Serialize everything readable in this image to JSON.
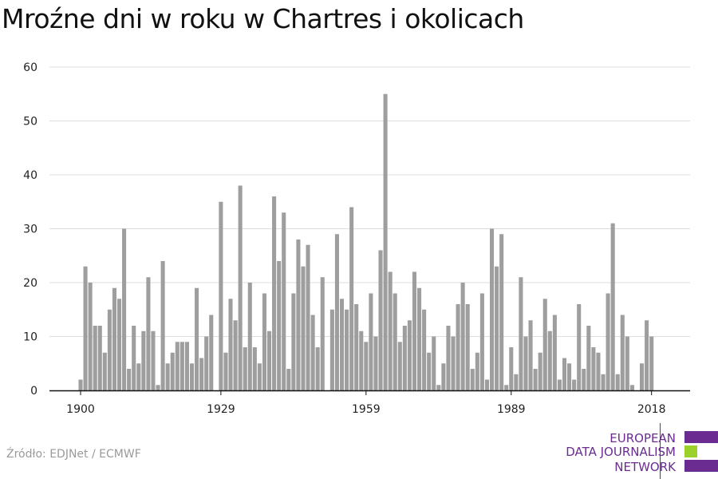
{
  "chart_data": {
    "type": "bar",
    "title": "Mroźne dni w roku w Chartres i okolicach",
    "xlabel": "",
    "ylabel": "",
    "ylim": [
      0,
      60
    ],
    "yticks": [
      0,
      10,
      20,
      30,
      40,
      50,
      60
    ],
    "xticks": [
      1900,
      1929,
      1959,
      1989,
      2018
    ],
    "grid": true,
    "bar_color": "#9e9e9e",
    "x": [
      1900,
      1901,
      1902,
      1903,
      1904,
      1905,
      1906,
      1907,
      1908,
      1909,
      1910,
      1911,
      1912,
      1913,
      1914,
      1915,
      1916,
      1917,
      1918,
      1919,
      1920,
      1921,
      1922,
      1923,
      1924,
      1925,
      1926,
      1927,
      1928,
      1929,
      1930,
      1931,
      1932,
      1933,
      1934,
      1935,
      1936,
      1937,
      1938,
      1939,
      1940,
      1941,
      1942,
      1943,
      1944,
      1945,
      1946,
      1947,
      1948,
      1949,
      1950,
      1951,
      1952,
      1953,
      1954,
      1955,
      1956,
      1957,
      1958,
      1959,
      1960,
      1961,
      1962,
      1963,
      1964,
      1965,
      1966,
      1967,
      1968,
      1969,
      1970,
      1971,
      1972,
      1973,
      1974,
      1975,
      1976,
      1977,
      1978,
      1979,
      1980,
      1981,
      1982,
      1983,
      1984,
      1985,
      1986,
      1987,
      1988,
      1989,
      1990,
      1991,
      1992,
      1993,
      1994,
      1995,
      1996,
      1997,
      1998,
      1999,
      2000,
      2001,
      2002,
      2003,
      2004,
      2005,
      2006,
      2007,
      2008,
      2009,
      2010,
      2011,
      2012,
      2013,
      2014,
      2015,
      2016,
      2017,
      2018
    ],
    "values": [
      2,
      23,
      20,
      12,
      12,
      7,
      15,
      19,
      17,
      30,
      4,
      12,
      5,
      11,
      21,
      11,
      1,
      24,
      5,
      7,
      9,
      9,
      9,
      5,
      19,
      6,
      10,
      14,
      0,
      35,
      7,
      17,
      13,
      38,
      8,
      20,
      8,
      5,
      18,
      11,
      36,
      24,
      33,
      4,
      18,
      28,
      23,
      27,
      14,
      8,
      21,
      0,
      15,
      29,
      17,
      15,
      34,
      16,
      11,
      9,
      18,
      10,
      26,
      55,
      22,
      18,
      9,
      12,
      13,
      22,
      19,
      15,
      7,
      10,
      1,
      5,
      12,
      10,
      16,
      20,
      16,
      4,
      7,
      18,
      2,
      30,
      23,
      29,
      1,
      8,
      3,
      21,
      10,
      13,
      4,
      7,
      17,
      11,
      14,
      2,
      6,
      5,
      2,
      16,
      4,
      12,
      8,
      7,
      3,
      18,
      31,
      3,
      14,
      10,
      1,
      0,
      5,
      13,
      10
    ]
  },
  "source": "Źródło: EDJNet / ECMWF",
  "logo": {
    "line1": "EUROPEAN",
    "line2": "DATA JOURNALISM",
    "line3": "NETWORK",
    "color_purple": "#6a2c91",
    "color_green": "#9bd12a"
  }
}
